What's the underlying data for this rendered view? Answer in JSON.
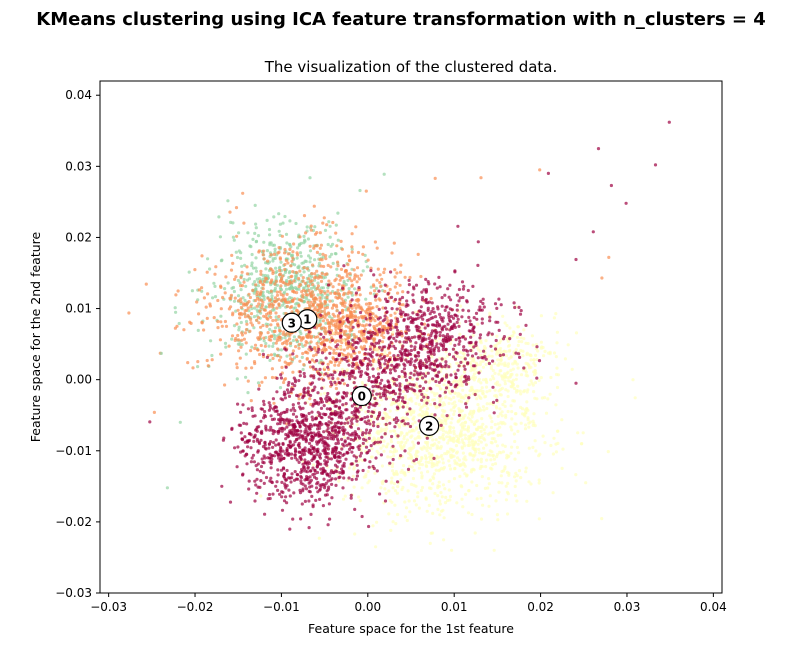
{
  "figure": {
    "suptitle": "KMeans clustering using ICA feature transformation with n_clusters = 4"
  },
  "chart_data": {
    "type": "scatter",
    "title": "The visualization of the clustered data.",
    "xlabel": "Feature space for the 1st feature",
    "ylabel": "Feature space for the 2nd feature",
    "xlim": [
      -0.031,
      0.041
    ],
    "ylim": [
      -0.03,
      0.042
    ],
    "xticks": [
      -0.03,
      -0.02,
      -0.01,
      0.0,
      0.01,
      0.02,
      0.03,
      0.04
    ],
    "yticks": [
      -0.03,
      -0.02,
      -0.01,
      0.0,
      0.01,
      0.02,
      0.03,
      0.04
    ],
    "xtick_labels": [
      "−0.03",
      "−0.02",
      "−0.01",
      "0.00",
      "0.01",
      "0.02",
      "0.03",
      "0.04"
    ],
    "ytick_labels": [
      "−0.03",
      "−0.02",
      "−0.01",
      "0.00",
      "0.01",
      "0.02",
      "0.03",
      "0.04"
    ],
    "grid": false,
    "legend": "none",
    "clusters": [
      {
        "label": "0",
        "color": "#9e0142",
        "center": [
          -0.0007,
          -0.0023
        ]
      },
      {
        "label": "1",
        "color": "#f98e52",
        "center": [
          -0.007,
          0.0085
        ]
      },
      {
        "label": "2",
        "color": "#ffffbe",
        "center": [
          0.0071,
          -0.0065
        ]
      },
      {
        "label": "3",
        "color": "#94d4a4",
        "center": [
          -0.0088,
          0.008
        ]
      }
    ],
    "sample_points": [
      {
        "x": 0.0349,
        "y": 0.0362,
        "cluster": 0
      },
      {
        "x": 0.0333,
        "y": 0.0302,
        "cluster": 0
      },
      {
        "x": 0.0267,
        "y": 0.0325,
        "cluster": 0
      },
      {
        "x": 0.0282,
        "y": 0.0273,
        "cluster": 0
      },
      {
        "x": 0.0299,
        "y": 0.0248,
        "cluster": 0
      },
      {
        "x": 0.0261,
        "y": 0.0208,
        "cluster": 0
      },
      {
        "x": 0.0279,
        "y": 0.0172,
        "cluster": 1
      },
      {
        "x": 0.0271,
        "y": 0.0143,
        "cluster": 1
      },
      {
        "x": 0.0241,
        "y": 0.0169,
        "cluster": 0
      },
      {
        "x": 0.0209,
        "y": 0.029,
        "cluster": 0
      },
      {
        "x": 0.0199,
        "y": 0.0295,
        "cluster": 1
      },
      {
        "x": 0.0131,
        "y": 0.0284,
        "cluster": 1
      },
      {
        "x": 0.0078,
        "y": 0.0283,
        "cluster": 1
      },
      {
        "x": 0.0019,
        "y": 0.0289,
        "cluster": 3
      },
      {
        "x": -0.0009,
        "y": 0.0266,
        "cluster": 3
      },
      {
        "x": -0.0152,
        "y": 0.0242,
        "cluster": 1
      },
      {
        "x": -0.0247,
        "y": -0.0046,
        "cluster": 1
      },
      {
        "x": -0.0239,
        "y": 0.0037,
        "cluster": 3
      },
      {
        "x": -0.0232,
        "y": -0.0152,
        "cluster": 3
      },
      {
        "x": -0.0217,
        "y": -0.006,
        "cluster": 3
      },
      {
        "x": -0.0169,
        "y": -0.015,
        "cluster": 0
      },
      {
        "x": -0.0068,
        "y": -0.0208,
        "cluster": 0
      },
      {
        "x": -0.0046,
        "y": -0.0204,
        "cluster": 0
      },
      {
        "x": 0.0009,
        "y": -0.0235,
        "cluster": 2
      },
      {
        "x": 0.0097,
        "y": -0.024,
        "cluster": 2
      },
      {
        "x": 0.0232,
        "y": 0.0049,
        "cluster": 2
      },
      {
        "x": 0.0241,
        "y": -0.0005,
        "cluster": 0
      },
      {
        "x": 0.0184,
        "y": -0.0171,
        "cluster": 2
      }
    ]
  }
}
